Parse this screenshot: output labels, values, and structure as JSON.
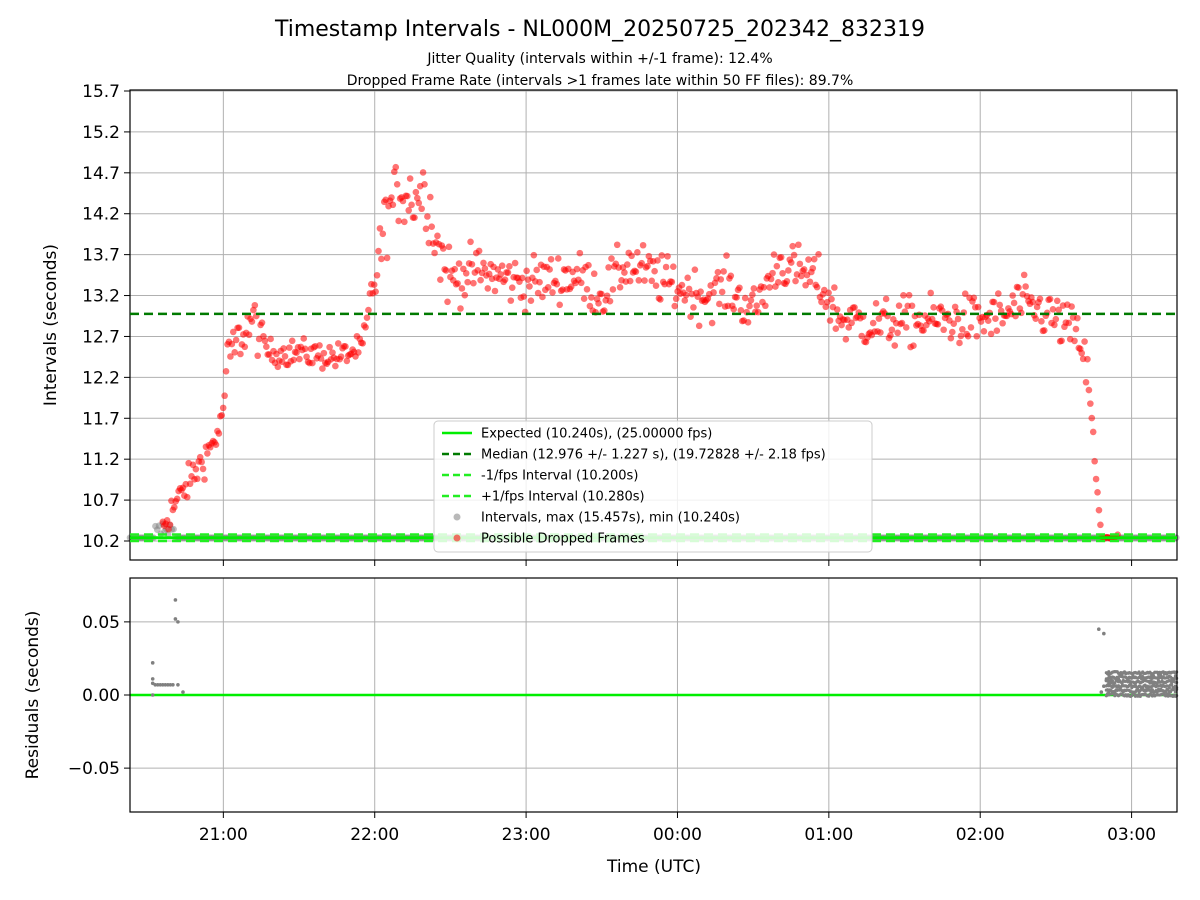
{
  "chart_data": [
    {
      "type": "scatter",
      "title": "Timestamp Intervals - NL000M_20250725_202342_832319",
      "subtitle_lines": [
        "Jitter Quality (intervals within +/-1 frame): 12.4%",
        "Dropped Frame Rate (intervals >1 frames late within 50 FF files): 89.7%"
      ],
      "xlabel": "",
      "ylabel": "Intervals (seconds)",
      "x_range": [
        "20:23",
        "03:18"
      ],
      "ylim": [
        10.2,
        15.7
      ],
      "yticks": [
        10.2,
        10.7,
        11.2,
        11.7,
        12.2,
        12.7,
        13.2,
        13.7,
        14.2,
        14.7,
        15.2,
        15.7
      ],
      "x_ticks": [
        "21:00",
        "22:00",
        "23:00",
        "00:00",
        "01:00",
        "02:00",
        "03:00"
      ],
      "grid": true,
      "legend_placement": "lower-center",
      "lines": [
        {
          "name": "Expected (10.240s), (25.00000 fps)",
          "y": 10.24,
          "style": "solid",
          "color": "#00ee00"
        },
        {
          "name": "Median (12.976 +/- 1.227 s), (19.72828 +/- 2.18 fps)",
          "y": 12.976,
          "style": "dashed",
          "color": "#007a00"
        },
        {
          "name": "-1/fps Interval (10.200s)",
          "y": 10.2,
          "style": "dashed",
          "color": "#22ee22"
        },
        {
          "name": "+1/fps Interval (10.280s)",
          "y": 10.28,
          "style": "dashed",
          "color": "#22ee22"
        }
      ],
      "series": [
        {
          "name": "Intervals, max (15.457s), min (10.240s)",
          "color": "#808080",
          "trend": [
            [
              "20:23",
              10.24
            ],
            [
              "20:33",
              10.24
            ],
            [
              "20:36",
              10.55
            ],
            [
              "20:41",
              10.24
            ],
            [
              "22:00",
              10.24
            ],
            [
              "02:46",
              10.24
            ],
            [
              "03:18",
              10.24
            ]
          ]
        },
        {
          "name": "Possible Dropped Frames",
          "color": "#ff0000",
          "trend": [
            [
              "20:36",
              10.4
            ],
            [
              "20:40",
              10.6
            ],
            [
              "20:45",
              10.85
            ],
            [
              "20:50",
              11.1
            ],
            [
              "20:55",
              11.35
            ],
            [
              "20:59",
              11.6
            ],
            [
              "21:02",
              12.45
            ],
            [
              "21:08",
              12.75
            ],
            [
              "21:12",
              12.9
            ],
            [
              "21:18",
              12.5
            ],
            [
              "21:30",
              12.5
            ],
            [
              "21:45",
              12.45
            ],
            [
              "21:55",
              12.55
            ],
            [
              "22:00",
              13.4
            ],
            [
              "22:05",
              14.2
            ],
            [
              "22:10",
              14.5
            ],
            [
              "22:15",
              14.4
            ],
            [
              "22:20",
              14.5
            ],
            [
              "22:25",
              13.8
            ],
            [
              "22:30",
              13.4
            ],
            [
              "22:40",
              13.5
            ],
            [
              "23:00",
              13.35
            ],
            [
              "23:20",
              13.45
            ],
            [
              "23:30",
              13.2
            ],
            [
              "23:40",
              13.6
            ],
            [
              "00:00",
              13.3
            ],
            [
              "00:10",
              13.2
            ],
            [
              "00:20",
              13.3
            ],
            [
              "00:30",
              13.0
            ],
            [
              "00:40",
              13.6
            ],
            [
              "00:55",
              13.4
            ],
            [
              "01:05",
              12.9
            ],
            [
              "01:20",
              12.85
            ],
            [
              "01:40",
              12.9
            ],
            [
              "02:00",
              12.9
            ],
            [
              "02:10",
              12.95
            ],
            [
              "02:15",
              13.1
            ],
            [
              "02:25",
              13.0
            ],
            [
              "02:35",
              12.8
            ],
            [
              "02:40",
              12.65
            ],
            [
              "02:43",
              12.1
            ],
            [
              "02:45",
              11.3
            ],
            [
              "02:47",
              10.6
            ],
            [
              "02:48",
              10.25
            ],
            [
              "02:55",
              10.25
            ]
          ]
        }
      ]
    },
    {
      "type": "scatter",
      "xlabel": "Time (UTC)",
      "ylabel": "Residuals (seconds)",
      "ylim": [
        -0.08,
        0.08
      ],
      "yticks": [
        -0.05,
        0.0,
        0.05
      ],
      "ytick_labels": [
        "−0.05",
        "0.00",
        "0.05"
      ],
      "x_ticks": [
        "21:00",
        "22:00",
        "23:00",
        "00:00",
        "01:00",
        "02:00",
        "03:00"
      ],
      "grid": true,
      "zero_line_color": "#00ee00",
      "series": [
        {
          "name": "Residuals",
          "color": "#808080",
          "points": [
            [
              "20:32",
              0.022
            ],
            [
              "20:32",
              0.011
            ],
            [
              "20:32",
              0.008
            ],
            [
              "20:33",
              0.007
            ],
            [
              "20:34",
              0.007
            ],
            [
              "20:35",
              0.007
            ],
            [
              "20:36",
              0.007
            ],
            [
              "20:37",
              0.007
            ],
            [
              "20:38",
              0.007
            ],
            [
              "20:39",
              0.007
            ],
            [
              "20:40",
              0.007
            ],
            [
              "20:41",
              0.052
            ],
            [
              "20:41",
              0.065
            ],
            [
              "20:42",
              0.05
            ],
            [
              "20:44",
              0.002
            ],
            [
              "20:32",
              0.0
            ],
            [
              "20:42",
              0.007
            ],
            [
              "02:47",
              0.045
            ],
            [
              "02:49",
              0.042
            ],
            [
              "02:48",
              0.002
            ],
            [
              "02:49",
              0.006
            ],
            [
              "02:50",
              0.01
            ],
            [
              "02:51",
              0.014
            ]
          ]
        },
        {
          "name": "Residual band",
          "color": "#808080",
          "band": {
            "x_start": "02:50",
            "x_end": "03:18",
            "values": [
              0.0,
              0.003,
              0.006,
              0.009,
              0.012,
              0.015
            ]
          }
        }
      ]
    }
  ]
}
